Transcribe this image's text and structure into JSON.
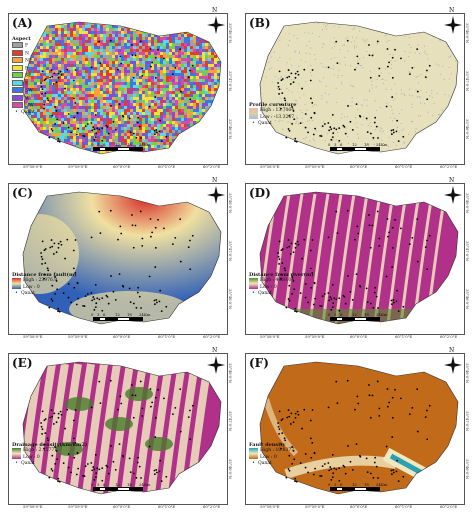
{
  "panels": [
    {
      "label": "(A)",
      "type": "aspect",
      "legend_title": "Aspect",
      "legend_items": [
        {
          "label": "F",
          "color": "#a0a0a0"
        },
        {
          "label": "N",
          "color": "#e03c31"
        },
        {
          "label": "NE",
          "color": "#f2a33c"
        },
        {
          "label": "E",
          "color": "#f2e23c"
        },
        {
          "label": "SE",
          "color": "#6fd24a"
        },
        {
          "label": "S",
          "color": "#5ad8e6"
        },
        {
          "label": "SW",
          "color": "#3c78e0"
        },
        {
          "label": "W",
          "color": "#8a4ad8"
        },
        {
          "label": "NW",
          "color": "#d84aa8"
        }
      ],
      "qanat_label": "Qanat"
    },
    {
      "label": "(B)",
      "type": "profile",
      "legend_title": "Profile curvature",
      "high": "High : 13.7064",
      "low": "Low : -13.3267",
      "ramp": [
        "#f0b8a0",
        "#d8d0a8",
        "#a8c0d8"
      ],
      "qanat_label": "Qanat"
    },
    {
      "label": "(C)",
      "type": "fault_distance",
      "legend_title": "Distance from fault(m)",
      "high": "High : 23976.9",
      "low": "Low : 0",
      "ramp": [
        "#d8302a",
        "#f0e0a0",
        "#3060b8"
      ],
      "qanat_label": "Qanat"
    },
    {
      "label": "(D)",
      "type": "river_distance",
      "legend_title": "Distance from river(m)",
      "high": "High : 4469.04",
      "low": "Low : 0",
      "ramp": [
        "#5a8a2a",
        "#f0e8c0",
        "#b0308a"
      ],
      "qanat_label": "Qanat"
    },
    {
      "label": "(E)",
      "type": "drainage",
      "legend_title": "Drainage density(km/km2)",
      "high": "High : 2.15777",
      "low": "Low : 0",
      "ramp": [
        "#4a7a2a",
        "#f0e8c0",
        "#b0308a"
      ],
      "qanat_label": "Qanat"
    },
    {
      "label": "(F)",
      "type": "fault_density",
      "legend_title": "Fault density",
      "high": "High : 10.8377",
      "low": "Low : 0",
      "ramp": [
        "#2aa0b0",
        "#f0e8c0",
        "#c06a1a"
      ],
      "qanat_label": "Qanat"
    }
  ],
  "scale_ticks": [
    "0",
    "3",
    "6",
    "12",
    "18",
    "24"
  ],
  "scale_unit": "Km",
  "lon_labels": [
    "59°58'0\"E",
    "59°59'0\"E",
    "60°0'0\"E",
    "60°1'0\"E",
    "60°2'0\"E"
  ],
  "lat_labels": [
    "35°48'0\"N",
    "35°47'0\"N",
    "35°46'0\"N"
  ],
  "north_letter": "N"
}
